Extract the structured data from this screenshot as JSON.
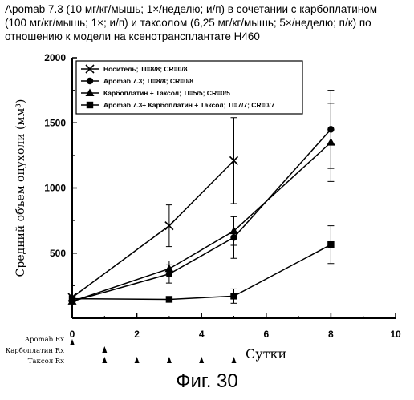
{
  "title_lines": [
    "Apomab 7.3 (10 мг/кг/мышь; 1×/неделю; и/п) в сочетании с карбоплатином",
    "(100 мг/кг/мышь; 1×; и/п) и таксолом (6,25 мг/кг/мышь; 5×/неделю; п/к) по",
    "отношению к модели на ксенотрансплантате H460"
  ],
  "figure_caption": "Фиг. 30",
  "chart_data": {
    "type": "line",
    "xlabel": "Сутки",
    "ylabel": "Средний объем опухоли (мм³)",
    "xlim": [
      0,
      10
    ],
    "ylim": [
      0,
      2000
    ],
    "x_ticks": [
      0,
      2,
      4,
      6,
      8,
      10
    ],
    "y_ticks": [
      500,
      1000,
      1500,
      2000
    ],
    "grid": false,
    "legend_position": "top-left",
    "series": [
      {
        "name": "Носитель; TI=8/8; CR=0/8",
        "marker": "x",
        "x": [
          0,
          3,
          5
        ],
        "y": [
          160,
          710,
          1210
        ],
        "error": [
          0,
          160,
          330
        ]
      },
      {
        "name": "Apomab 7.3; TI=8/8; CR=0/8",
        "marker": "circle",
        "x": [
          0,
          3,
          5,
          8
        ],
        "y": [
          130,
          340,
          620,
          1450
        ],
        "error": [
          0,
          70,
          160,
          300
        ]
      },
      {
        "name": "Карбоплатин + Таксол; TI=5/5; CR=0/5",
        "marker": "triangle",
        "x": [
          0,
          3,
          5,
          8
        ],
        "y": [
          130,
          380,
          670,
          1350
        ],
        "error": [
          0,
          60,
          110,
          300
        ]
      },
      {
        "name": "Apomab 7.3+ Карбоплатин + Таксол; TI=7/7; CR=0/7",
        "marker": "square",
        "x": [
          0,
          3,
          5,
          8
        ],
        "y": [
          150,
          145,
          170,
          565
        ],
        "error": [
          0,
          0,
          55,
          145
        ]
      }
    ],
    "dosing": {
      "labels": [
        "Apomab Rx",
        "Карбоплатин Rx",
        "Таксол Rx"
      ],
      "days": [
        [
          0
        ],
        [
          1
        ],
        [
          1,
          2,
          3,
          4,
          5
        ]
      ]
    }
  }
}
